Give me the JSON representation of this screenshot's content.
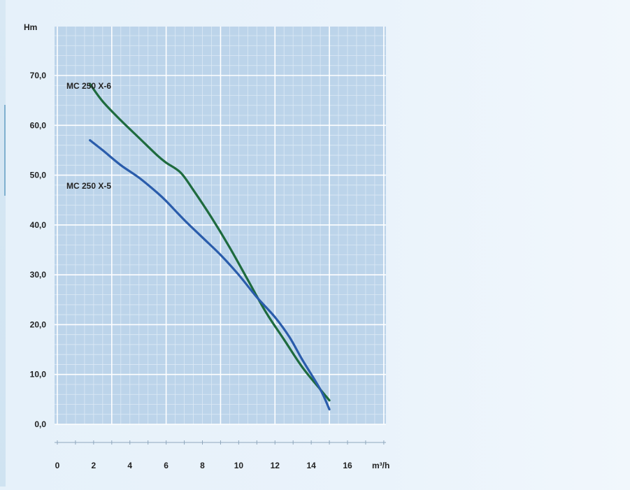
{
  "chart_data": {
    "type": "line",
    "ylabel": "Hm",
    "xlabel": "m³/h",
    "xlim": [
      0,
      17
    ],
    "ylim": [
      0,
      80
    ],
    "x_ticks": [
      0,
      2,
      4,
      6,
      8,
      10,
      12,
      14,
      16
    ],
    "x_tick_labels": [
      "0",
      "2",
      "4",
      "6",
      "8",
      "10",
      "12",
      "14",
      "16"
    ],
    "y_ticks": [
      0,
      10,
      20,
      30,
      40,
      50,
      60,
      70
    ],
    "y_tick_labels": [
      "0,0",
      "10,0",
      "20,0",
      "30,0",
      "40,0",
      "50,0",
      "60,0",
      "70,0"
    ],
    "grid": true,
    "colors": {
      "plot_bg": "#bcd4ea",
      "grid_minor": "#dce9f5",
      "grid_major": "#ffffff"
    },
    "series": [
      {
        "name": "MC 250 X-6",
        "color": "#1e6b3e",
        "x": [
          1.8,
          2.5,
          3.5,
          4.5,
          5.5,
          6.0,
          6.8,
          7.5,
          8.5,
          9.5,
          10.5,
          11.5,
          12.5,
          13.5,
          14.5,
          15.0
        ],
        "y": [
          68.3,
          64.8,
          61.0,
          57.5,
          54.0,
          52.5,
          50.5,
          47.0,
          41.5,
          35.5,
          29.0,
          22.5,
          17.0,
          11.5,
          7.0,
          4.8
        ]
      },
      {
        "name": "MC 250 X-5",
        "color": "#2a5cab",
        "x": [
          1.8,
          2.5,
          3.5,
          4.5,
          5.5,
          6.0,
          7.0,
          8.0,
          9.0,
          10.0,
          11.0,
          12.0,
          12.8,
          13.5,
          14.5,
          15.0
        ],
        "y": [
          57.0,
          55.0,
          52.0,
          49.5,
          46.5,
          44.8,
          41.0,
          37.5,
          34.0,
          30.0,
          25.5,
          21.5,
          17.5,
          13.0,
          7.0,
          3.0
        ]
      }
    ]
  }
}
